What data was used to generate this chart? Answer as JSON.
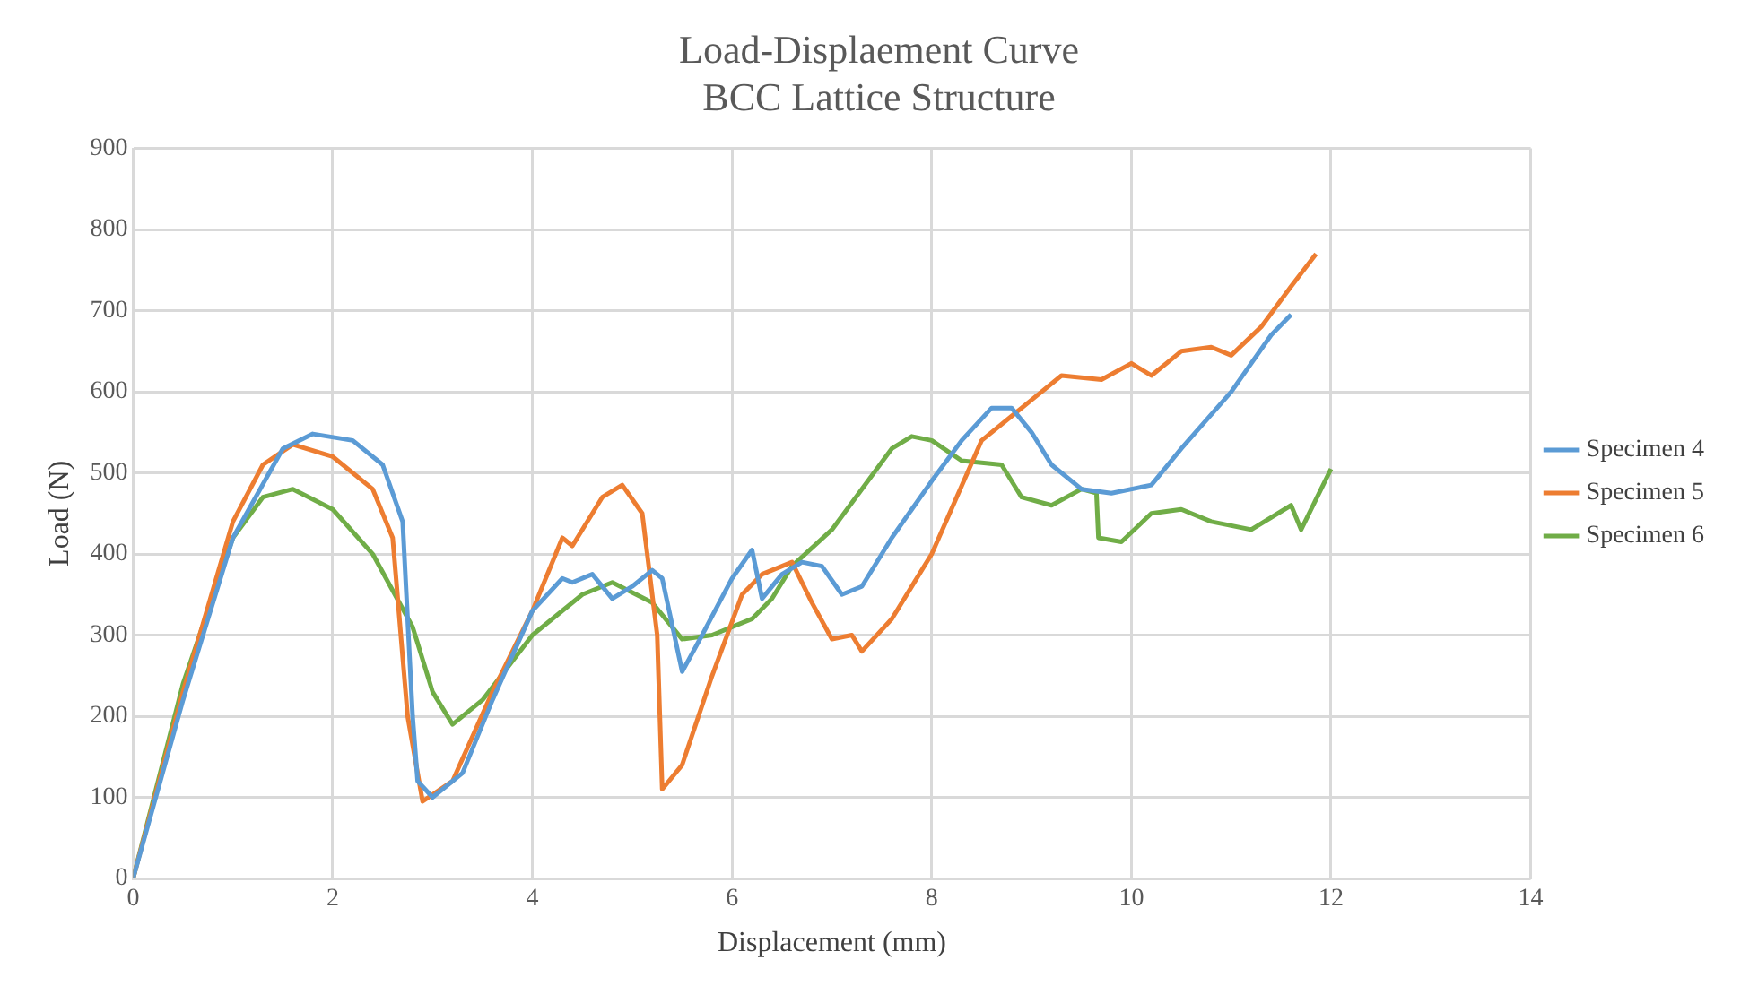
{
  "chart_data": {
    "type": "line",
    "title": [
      "Load-Displaement Curve",
      "BCC Lattice Structure"
    ],
    "xlabel": "Displacement (mm)",
    "ylabel": "Load (N)",
    "xlim": [
      0,
      14
    ],
    "xticks": [
      0,
      2,
      4,
      6,
      8,
      10,
      12,
      14
    ],
    "ylim": [
      0,
      900
    ],
    "yticks": [
      0,
      100,
      200,
      300,
      400,
      500,
      600,
      700,
      800,
      900
    ],
    "grid": true,
    "legend": "right",
    "marker": "none",
    "series": [
      {
        "name": "Specimen 4",
        "color": "#5b9bd5",
        "x": [
          0,
          0.5,
          1,
          1.5,
          1.8,
          2.2,
          2.5,
          2.7,
          2.8,
          2.85,
          3,
          3.3,
          3.6,
          4,
          4.3,
          4.4,
          4.6,
          4.8,
          5,
          5.2,
          5.3,
          5.5,
          5.7,
          6,
          6.2,
          6.3,
          6.5,
          6.7,
          6.9,
          7.1,
          7.3,
          7.6,
          8,
          8.3,
          8.6,
          8.8,
          9,
          9.2,
          9.5,
          9.8,
          10.2,
          10.5,
          11,
          11.4,
          11.6
        ],
        "values": [
          0,
          220,
          420,
          530,
          548,
          540,
          510,
          440,
          200,
          120,
          100,
          130,
          220,
          330,
          370,
          365,
          375,
          345,
          360,
          380,
          370,
          255,
          300,
          370,
          405,
          345,
          375,
          390,
          385,
          350,
          360,
          420,
          490,
          540,
          580,
          580,
          550,
          510,
          480,
          475,
          485,
          530,
          600,
          670,
          695
        ]
      },
      {
        "name": "Specimen 5",
        "color": "#ed7d31",
        "x": [
          0,
          0.5,
          1,
          1.3,
          1.6,
          2,
          2.4,
          2.6,
          2.75,
          2.9,
          3.2,
          3.6,
          4,
          4.3,
          4.4,
          4.7,
          4.9,
          5.1,
          5.25,
          5.3,
          5.5,
          5.8,
          6.1,
          6.3,
          6.6,
          6.8,
          7,
          7.2,
          7.3,
          7.6,
          8,
          8.5,
          8.8,
          9,
          9.3,
          9.7,
          10,
          10.2,
          10.5,
          10.8,
          11,
          11.3,
          11.6,
          11.85
        ],
        "values": [
          0,
          230,
          440,
          510,
          535,
          520,
          480,
          420,
          200,
          95,
          120,
          230,
          330,
          420,
          410,
          470,
          485,
          450,
          300,
          110,
          140,
          250,
          350,
          375,
          390,
          340,
          295,
          300,
          280,
          320,
          400,
          540,
          570,
          590,
          620,
          615,
          635,
          620,
          650,
          655,
          645,
          680,
          730,
          770
        ]
      },
      {
        "name": "Specimen 6",
        "color": "#70ad47",
        "x": [
          0,
          0.5,
          1,
          1.3,
          1.6,
          2,
          2.4,
          2.8,
          3,
          3.2,
          3.5,
          4,
          4.5,
          4.8,
          5.2,
          5.5,
          5.8,
          6.2,
          6.4,
          6.6,
          7,
          7.3,
          7.6,
          7.8,
          8,
          8.3,
          8.7,
          8.9,
          9.2,
          9.5,
          9.65,
          9.67,
          9.9,
          10.2,
          10.5,
          10.8,
          11.2,
          11.6,
          11.7,
          12
        ],
        "values": [
          0,
          240,
          420,
          470,
          480,
          455,
          400,
          310,
          230,
          190,
          220,
          300,
          350,
          365,
          340,
          295,
          300,
          320,
          345,
          385,
          430,
          480,
          530,
          545,
          540,
          515,
          510,
          470,
          460,
          480,
          475,
          420,
          415,
          450,
          455,
          440,
          430,
          460,
          430,
          505
        ]
      }
    ]
  }
}
